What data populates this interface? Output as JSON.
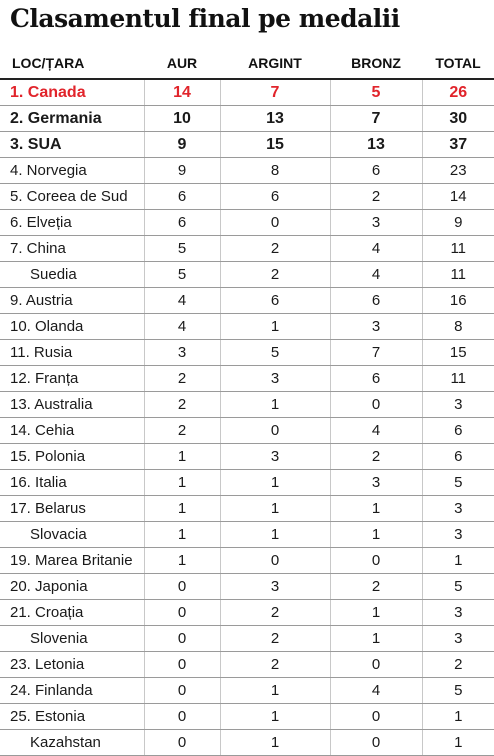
{
  "title": "Clasamentul final pe medalii",
  "headers": {
    "country": "LOC/ȚARA",
    "gold": "AUR",
    "silver": "ARGINT",
    "bronze": "BRONZ",
    "total": "TOTAL"
  },
  "rows": [
    {
      "country": "1. Canada",
      "gold": "14",
      "silver": "7",
      "bronze": "5",
      "total": "26"
    },
    {
      "country": "2. Germania",
      "gold": "10",
      "silver": "13",
      "bronze": "7",
      "total": "30"
    },
    {
      "country": "3. SUA",
      "gold": "9",
      "silver": "15",
      "bronze": "13",
      "total": "37"
    },
    {
      "country": "4. Norvegia",
      "gold": "9",
      "silver": "8",
      "bronze": "6",
      "total": "23"
    },
    {
      "country": "5. Coreea de Sud",
      "gold": "6",
      "silver": "6",
      "bronze": "2",
      "total": "14"
    },
    {
      "country": "6. Elveția",
      "gold": "6",
      "silver": "0",
      "bronze": "3",
      "total": "9"
    },
    {
      "country": "7. China",
      "gold": "5",
      "silver": "2",
      "bronze": "4",
      "total": "11"
    },
    {
      "country": "Suedia",
      "gold": "5",
      "silver": "2",
      "bronze": "4",
      "total": "11"
    },
    {
      "country": "9. Austria",
      "gold": "4",
      "silver": "6",
      "bronze": "6",
      "total": "16"
    },
    {
      "country": "10. Olanda",
      "gold": "4",
      "silver": "1",
      "bronze": "3",
      "total": "8"
    },
    {
      "country": "11. Rusia",
      "gold": "3",
      "silver": "5",
      "bronze": "7",
      "total": "15"
    },
    {
      "country": "12. Franța",
      "gold": "2",
      "silver": "3",
      "bronze": "6",
      "total": "11"
    },
    {
      "country": "13. Australia",
      "gold": "2",
      "silver": "1",
      "bronze": "0",
      "total": "3"
    },
    {
      "country": "14. Cehia",
      "gold": "2",
      "silver": "0",
      "bronze": "4",
      "total": "6"
    },
    {
      "country": "15. Polonia",
      "gold": "1",
      "silver": "3",
      "bronze": "2",
      "total": "6"
    },
    {
      "country": "16. Italia",
      "gold": "1",
      "silver": "1",
      "bronze": "3",
      "total": "5"
    },
    {
      "country": "17. Belarus",
      "gold": "1",
      "silver": "1",
      "bronze": "1",
      "total": "3"
    },
    {
      "country": "Slovacia",
      "gold": "1",
      "silver": "1",
      "bronze": "1",
      "total": "3"
    },
    {
      "country": "19. Marea Britanie",
      "gold": "1",
      "silver": "0",
      "bronze": "0",
      "total": "1"
    },
    {
      "country": "20. Japonia",
      "gold": "0",
      "silver": "3",
      "bronze": "2",
      "total": "5"
    },
    {
      "country": "21. Croația",
      "gold": "0",
      "silver": "2",
      "bronze": "1",
      "total": "3"
    },
    {
      "country": "Slovenia",
      "gold": "0",
      "silver": "2",
      "bronze": "1",
      "total": "3"
    },
    {
      "country": "23. Letonia",
      "gold": "0",
      "silver": "2",
      "bronze": "0",
      "total": "2"
    },
    {
      "country": "24. Finlanda",
      "gold": "0",
      "silver": "1",
      "bronze": "4",
      "total": "5"
    },
    {
      "country": "25. Estonia",
      "gold": "0",
      "silver": "1",
      "bronze": "0",
      "total": "1"
    },
    {
      "country": "Kazahstan",
      "gold": "0",
      "silver": "1",
      "bronze": "0",
      "total": "1"
    }
  ],
  "colors": {
    "highlight": "#e1242b",
    "text": "#1a1a1a"
  }
}
